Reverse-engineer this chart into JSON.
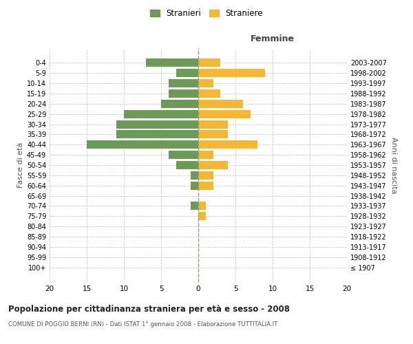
{
  "age_groups": [
    "100+",
    "95-99",
    "90-94",
    "85-89",
    "80-84",
    "75-79",
    "70-74",
    "65-69",
    "60-64",
    "55-59",
    "50-54",
    "45-49",
    "40-44",
    "35-39",
    "30-34",
    "25-29",
    "20-24",
    "15-19",
    "10-14",
    "5-9",
    "0-4"
  ],
  "birth_years": [
    "≤ 1907",
    "1908-1912",
    "1913-1917",
    "1918-1922",
    "1923-1927",
    "1928-1932",
    "1933-1937",
    "1938-1942",
    "1943-1947",
    "1948-1952",
    "1953-1957",
    "1958-1962",
    "1963-1967",
    "1968-1972",
    "1973-1977",
    "1978-1982",
    "1983-1987",
    "1988-1992",
    "1993-1997",
    "1998-2002",
    "2003-2007"
  ],
  "males": [
    0,
    0,
    0,
    0,
    0,
    0,
    1,
    0,
    1,
    1,
    3,
    4,
    15,
    11,
    11,
    10,
    5,
    4,
    4,
    3,
    7
  ],
  "females": [
    0,
    0,
    0,
    0,
    0,
    1,
    1,
    0,
    2,
    2,
    4,
    2,
    8,
    4,
    4,
    7,
    6,
    3,
    2,
    9,
    3
  ],
  "male_color": "#6a9a56",
  "female_color": "#f5b731",
  "background_color": "#ffffff",
  "grid_color": "#cccccc",
  "title": "Popolazione per cittadinanza straniera per età e sesso - 2008",
  "subtitle": "COMUNE DI POGGIO BERNI (RN) - Dati ISTAT 1° gennaio 2008 - Elaborazione TUTTITALIA.IT",
  "xlabel_right": "Femmine",
  "ylabel_left": "Fasce di età",
  "ylabel_right": "Anni di nascita",
  "legend_male": "Stranieri",
  "legend_female": "Straniere",
  "xlim": 20,
  "bar_height": 0.8
}
